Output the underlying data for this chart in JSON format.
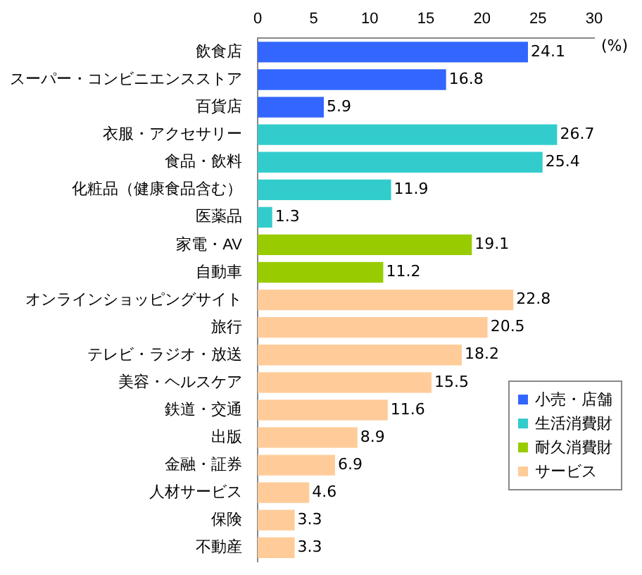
{
  "chart_data": {
    "type": "bar",
    "orientation": "horizontal",
    "stacked": true,
    "xlabel": "(%)",
    "categories": [
      "飲食店",
      "スーパー・コンビニエンスストア",
      "百貨店",
      "衣服・アクセサリー",
      "食品・飲料",
      "化粧品（健康食品含む）",
      "医薬品",
      "家電・AV",
      "自動車",
      "オンラインショッピングサイト",
      "旅行",
      "テレビ・ラジオ・放送",
      "美容・ヘルスケア",
      "鉄道・交通",
      "出版",
      "金融・証券",
      "人材サービス",
      "保険",
      "不動産"
    ],
    "series": [
      {
        "name": "小売・店舗",
        "color": "#3366ff",
        "values": [
          24.1,
          16.8,
          5.9,
          null,
          null,
          null,
          null,
          null,
          null,
          null,
          null,
          null,
          null,
          null,
          null,
          null,
          null,
          null,
          null
        ]
      },
      {
        "name": "生活消費財",
        "color": "#33cccc",
        "values": [
          null,
          null,
          null,
          26.7,
          25.4,
          11.9,
          1.3,
          null,
          null,
          null,
          null,
          null,
          null,
          null,
          null,
          null,
          null,
          null,
          null
        ]
      },
      {
        "name": "耐久消費財",
        "color": "#99cc00",
        "values": [
          null,
          null,
          null,
          null,
          null,
          null,
          null,
          19.1,
          11.2,
          null,
          null,
          null,
          null,
          null,
          null,
          null,
          null,
          null,
          null
        ]
      },
      {
        "name": "サービス",
        "color": "#ffcc99",
        "values": [
          null,
          null,
          null,
          null,
          null,
          null,
          null,
          null,
          null,
          22.8,
          20.5,
          18.2,
          15.5,
          11.6,
          8.9,
          6.9,
          4.6,
          3.3,
          3.3
        ]
      }
    ],
    "xlim": [
      0,
      30
    ],
    "xticks": [
      0,
      5,
      10,
      15,
      20,
      25,
      30
    ],
    "grid": false,
    "legend": "bottom right",
    "data_labels": true
  }
}
